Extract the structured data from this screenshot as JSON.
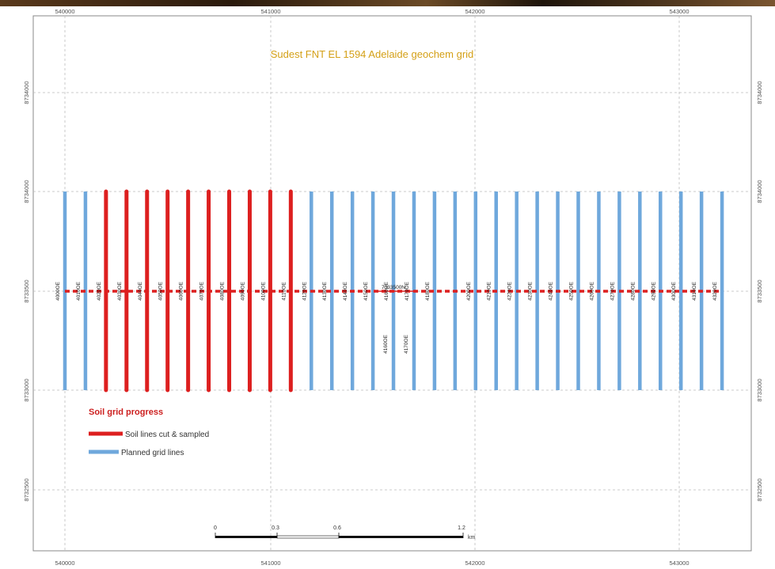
{
  "map": {
    "title": "Sudest FNT EL 1594 Adelaide geochem grid",
    "easting_ticks": [
      "540000",
      "541000",
      "542000",
      "543000"
    ],
    "northing_ticks": [
      "8734000",
      "8733500",
      "8733000",
      "8732500"
    ],
    "eastings": [
      540000,
      541000,
      542000,
      543000
    ],
    "northings_right": [
      "8734000",
      "8734000",
      "8733500",
      "8733000",
      "8732500"
    ],
    "baseline_label": "7333500N",
    "colors": {
      "sampled": "#dd1f1f",
      "planned": "#6fa8dc",
      "title": "#d4a017",
      "grid": "#bbbbbb"
    }
  },
  "grid_lines": [
    {
      "label": "4000OE",
      "status": "planned"
    },
    {
      "label": "4010OE",
      "status": "planned"
    },
    {
      "label": "4020OE",
      "status": "sampled"
    },
    {
      "label": "4030OE",
      "status": "sampled"
    },
    {
      "label": "4040OE",
      "status": "sampled"
    },
    {
      "label": "4050OE",
      "status": "sampled"
    },
    {
      "label": "4060OE",
      "status": "sampled"
    },
    {
      "label": "4070OE",
      "status": "sampled"
    },
    {
      "label": "4080OE",
      "status": "sampled"
    },
    {
      "label": "4090OE",
      "status": "sampled"
    },
    {
      "label": "4100OE",
      "status": "sampled"
    },
    {
      "label": "4110OE",
      "status": "sampled"
    },
    {
      "label": "4120OE",
      "status": "planned"
    },
    {
      "label": "4130OE",
      "status": "planned"
    },
    {
      "label": "4140OE",
      "status": "planned"
    },
    {
      "label": "4150OE",
      "status": "planned"
    },
    {
      "label": "4160OE",
      "status": "planned"
    },
    {
      "label": "4170OE",
      "status": "planned"
    },
    {
      "label": "4180OE",
      "status": "planned"
    },
    {
      "label": "4190OE",
      "status": "planned"
    },
    {
      "label": "4200OE",
      "status": "planned"
    },
    {
      "label": "4210OE",
      "status": "planned"
    },
    {
      "label": "4220OE",
      "status": "planned"
    },
    {
      "label": "4230OE",
      "status": "planned"
    },
    {
      "label": "4240OE",
      "status": "planned"
    },
    {
      "label": "4250OE",
      "status": "planned"
    },
    {
      "label": "4260OE",
      "status": "planned"
    },
    {
      "label": "4270OE",
      "status": "planned"
    },
    {
      "label": "4280OE",
      "status": "planned"
    },
    {
      "label": "4290OE",
      "status": "planned"
    },
    {
      "label": "4300OE",
      "status": "planned"
    },
    {
      "label": "4310OE",
      "status": "planned"
    },
    {
      "label": "4320OE",
      "status": "planned"
    }
  ],
  "below_labels": [
    "4160OE",
    "4170OE"
  ],
  "legend": {
    "title": "Soil grid progress",
    "sampled": "Soil lines cut & sampled",
    "planned": "Planned grid lines"
  },
  "scale": {
    "ticks": [
      "0",
      "0.3",
      "0.6",
      "1.2"
    ],
    "unit": "km"
  }
}
